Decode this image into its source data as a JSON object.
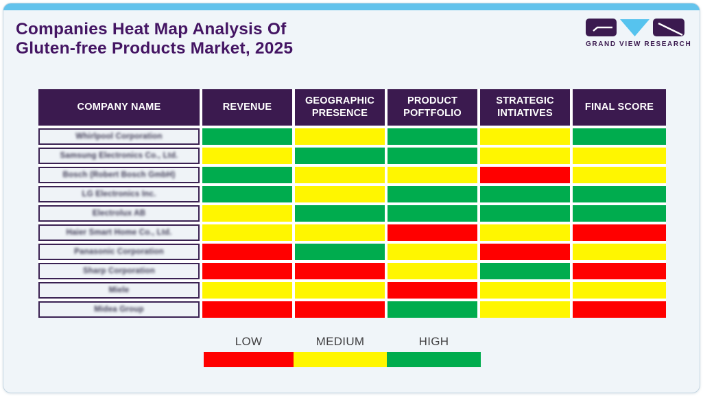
{
  "header": {
    "title_line1": "Companies Heat Map Analysis Of",
    "title_line2": "Gluten-free Products Market, 2025",
    "logo_text": "GRAND VIEW RESEARCH"
  },
  "colors": {
    "accent_blue": "#63c3ec",
    "header_purple": "#3b1a4f",
    "title_purple": "#441563",
    "card_background": "#f0f5f9",
    "low_red": "#ff0000",
    "medium_yellow": "#fff600",
    "high_green": "#00ac4e"
  },
  "table": {
    "columns": [
      "COMPANY NAME",
      "REVENUE",
      "GEOGRAPHIC PRESENCE",
      "PRODUCT POFTFOLIO",
      "STRATEGIC INTIATIVES",
      "FINAL SCORE"
    ],
    "rating_colors": {
      "low": "#ff0000",
      "medium": "#fff600",
      "high": "#00ac4e"
    },
    "rows": [
      {
        "company": "Whirlpool Corporation",
        "ratings": [
          "high",
          "medium",
          "high",
          "medium",
          "high"
        ]
      },
      {
        "company": "Samsung Electronics Co., Ltd.",
        "ratings": [
          "medium",
          "high",
          "high",
          "medium",
          "medium"
        ]
      },
      {
        "company": "Bosch (Robert Bosch GmbH)",
        "ratings": [
          "high",
          "medium",
          "medium",
          "low",
          "medium"
        ]
      },
      {
        "company": "LG Electronics Inc.",
        "ratings": [
          "high",
          "medium",
          "high",
          "high",
          "high"
        ]
      },
      {
        "company": "Electrolux AB",
        "ratings": [
          "medium",
          "high",
          "high",
          "high",
          "high"
        ]
      },
      {
        "company": "Haier Smart Home Co., Ltd.",
        "ratings": [
          "medium",
          "medium",
          "low",
          "medium",
          "low"
        ]
      },
      {
        "company": "Panasonic Corporation",
        "ratings": [
          "low",
          "high",
          "medium",
          "low",
          "medium"
        ]
      },
      {
        "company": "Sharp Corporation",
        "ratings": [
          "low",
          "low",
          "medium",
          "high",
          "low"
        ]
      },
      {
        "company": "Miele",
        "ratings": [
          "medium",
          "medium",
          "low",
          "medium",
          "medium"
        ]
      },
      {
        "company": "Midea Group",
        "ratings": [
          "low",
          "low",
          "high",
          "medium",
          "low"
        ]
      }
    ]
  },
  "legend": {
    "items": [
      {
        "label": "LOW",
        "color": "#ff0000"
      },
      {
        "label": "MEDIUM",
        "color": "#fff600"
      },
      {
        "label": "HIGH",
        "color": "#00ac4e"
      }
    ]
  },
  "chart_data": {
    "type": "heatmap",
    "title": "Companies Heat Map Analysis Of Gluten-free Products Market, 2025",
    "columns": [
      "REVENUE",
      "GEOGRAPHIC PRESENCE",
      "PRODUCT POFTFOLIO",
      "STRATEGIC INTIATIVES",
      "FINAL SCORE"
    ],
    "rows": [
      "Whirlpool Corporation",
      "Samsung Electronics Co., Ltd.",
      "Bosch (Robert Bosch GmbH)",
      "LG Electronics Inc.",
      "Electrolux AB",
      "Haier Smart Home Co., Ltd.",
      "Panasonic Corporation",
      "Sharp Corporation",
      "Miele",
      "Midea Group"
    ],
    "values": [
      [
        "high",
        "medium",
        "high",
        "medium",
        "high"
      ],
      [
        "medium",
        "high",
        "high",
        "medium",
        "medium"
      ],
      [
        "high",
        "medium",
        "medium",
        "low",
        "medium"
      ],
      [
        "high",
        "medium",
        "high",
        "high",
        "high"
      ],
      [
        "medium",
        "high",
        "high",
        "high",
        "high"
      ],
      [
        "medium",
        "medium",
        "low",
        "medium",
        "low"
      ],
      [
        "low",
        "high",
        "medium",
        "low",
        "medium"
      ],
      [
        "low",
        "low",
        "medium",
        "high",
        "low"
      ],
      [
        "medium",
        "medium",
        "low",
        "medium",
        "medium"
      ],
      [
        "low",
        "low",
        "high",
        "medium",
        "low"
      ]
    ],
    "scale": {
      "low": "#ff0000",
      "medium": "#fff600",
      "high": "#00ac4e"
    },
    "legend_labels": [
      "LOW",
      "MEDIUM",
      "HIGH"
    ],
    "legend_position": "bottom"
  }
}
